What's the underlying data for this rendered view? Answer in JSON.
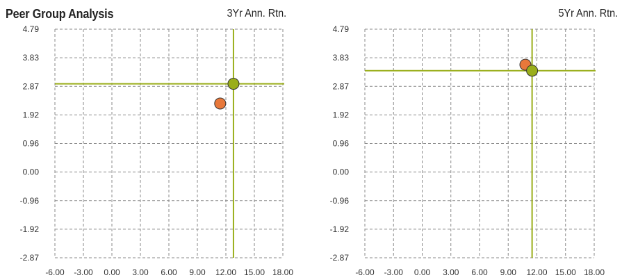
{
  "header": {
    "title": "Peer Group Analysis"
  },
  "colors": {
    "grid": "#8a8a8a",
    "axis_line": "#9aae1a",
    "fund_marker": "#9aae1a",
    "peer_marker": "#e8783a",
    "marker_stroke": "#333333"
  },
  "chart_data": [
    {
      "type": "scatter",
      "title": "3Yr Ann. Rtn.",
      "xlabel": "",
      "ylabel": "",
      "x_ticks": [
        "-6.00",
        "-3.00",
        "0.00",
        "3.00",
        "6.00",
        "9.00",
        "12.00",
        "15.00",
        "18.00"
      ],
      "y_ticks": [
        "-2.87",
        "-1.92",
        "-0.96",
        "0.00",
        "0.96",
        "1.92",
        "2.87",
        "3.83",
        "4.79"
      ],
      "xlim": [
        -6.0,
        18.0
      ],
      "ylim": [
        -2.87,
        4.79
      ],
      "grid": true,
      "points": [
        {
          "x": 11.4,
          "y": 2.3,
          "color": "#e8783a",
          "role": "peer"
        },
        {
          "x": 12.8,
          "y": 2.96,
          "color": "#9aae1a",
          "role": "fund"
        }
      ],
      "crosshair": {
        "x": 12.8,
        "y": 2.96
      }
    },
    {
      "type": "scatter",
      "title": "5Yr Ann. Rtn.",
      "xlabel": "",
      "ylabel": "",
      "x_ticks": [
        "-6.00",
        "-3.00",
        "0.00",
        "3.00",
        "6.00",
        "9.00",
        "12.00",
        "15.00",
        "18.00"
      ],
      "y_ticks": [
        "-2.87",
        "-1.92",
        "-0.96",
        "0.00",
        "0.96",
        "1.92",
        "2.87",
        "3.83",
        "4.79"
      ],
      "xlim": [
        -6.0,
        18.0
      ],
      "ylim": [
        -2.87,
        4.79
      ],
      "grid": true,
      "points": [
        {
          "x": 10.8,
          "y": 3.6,
          "color": "#e8783a",
          "role": "peer"
        },
        {
          "x": 11.5,
          "y": 3.4,
          "color": "#9aae1a",
          "role": "fund"
        }
      ],
      "crosshair": {
        "x": 11.5,
        "y": 3.4
      }
    }
  ]
}
